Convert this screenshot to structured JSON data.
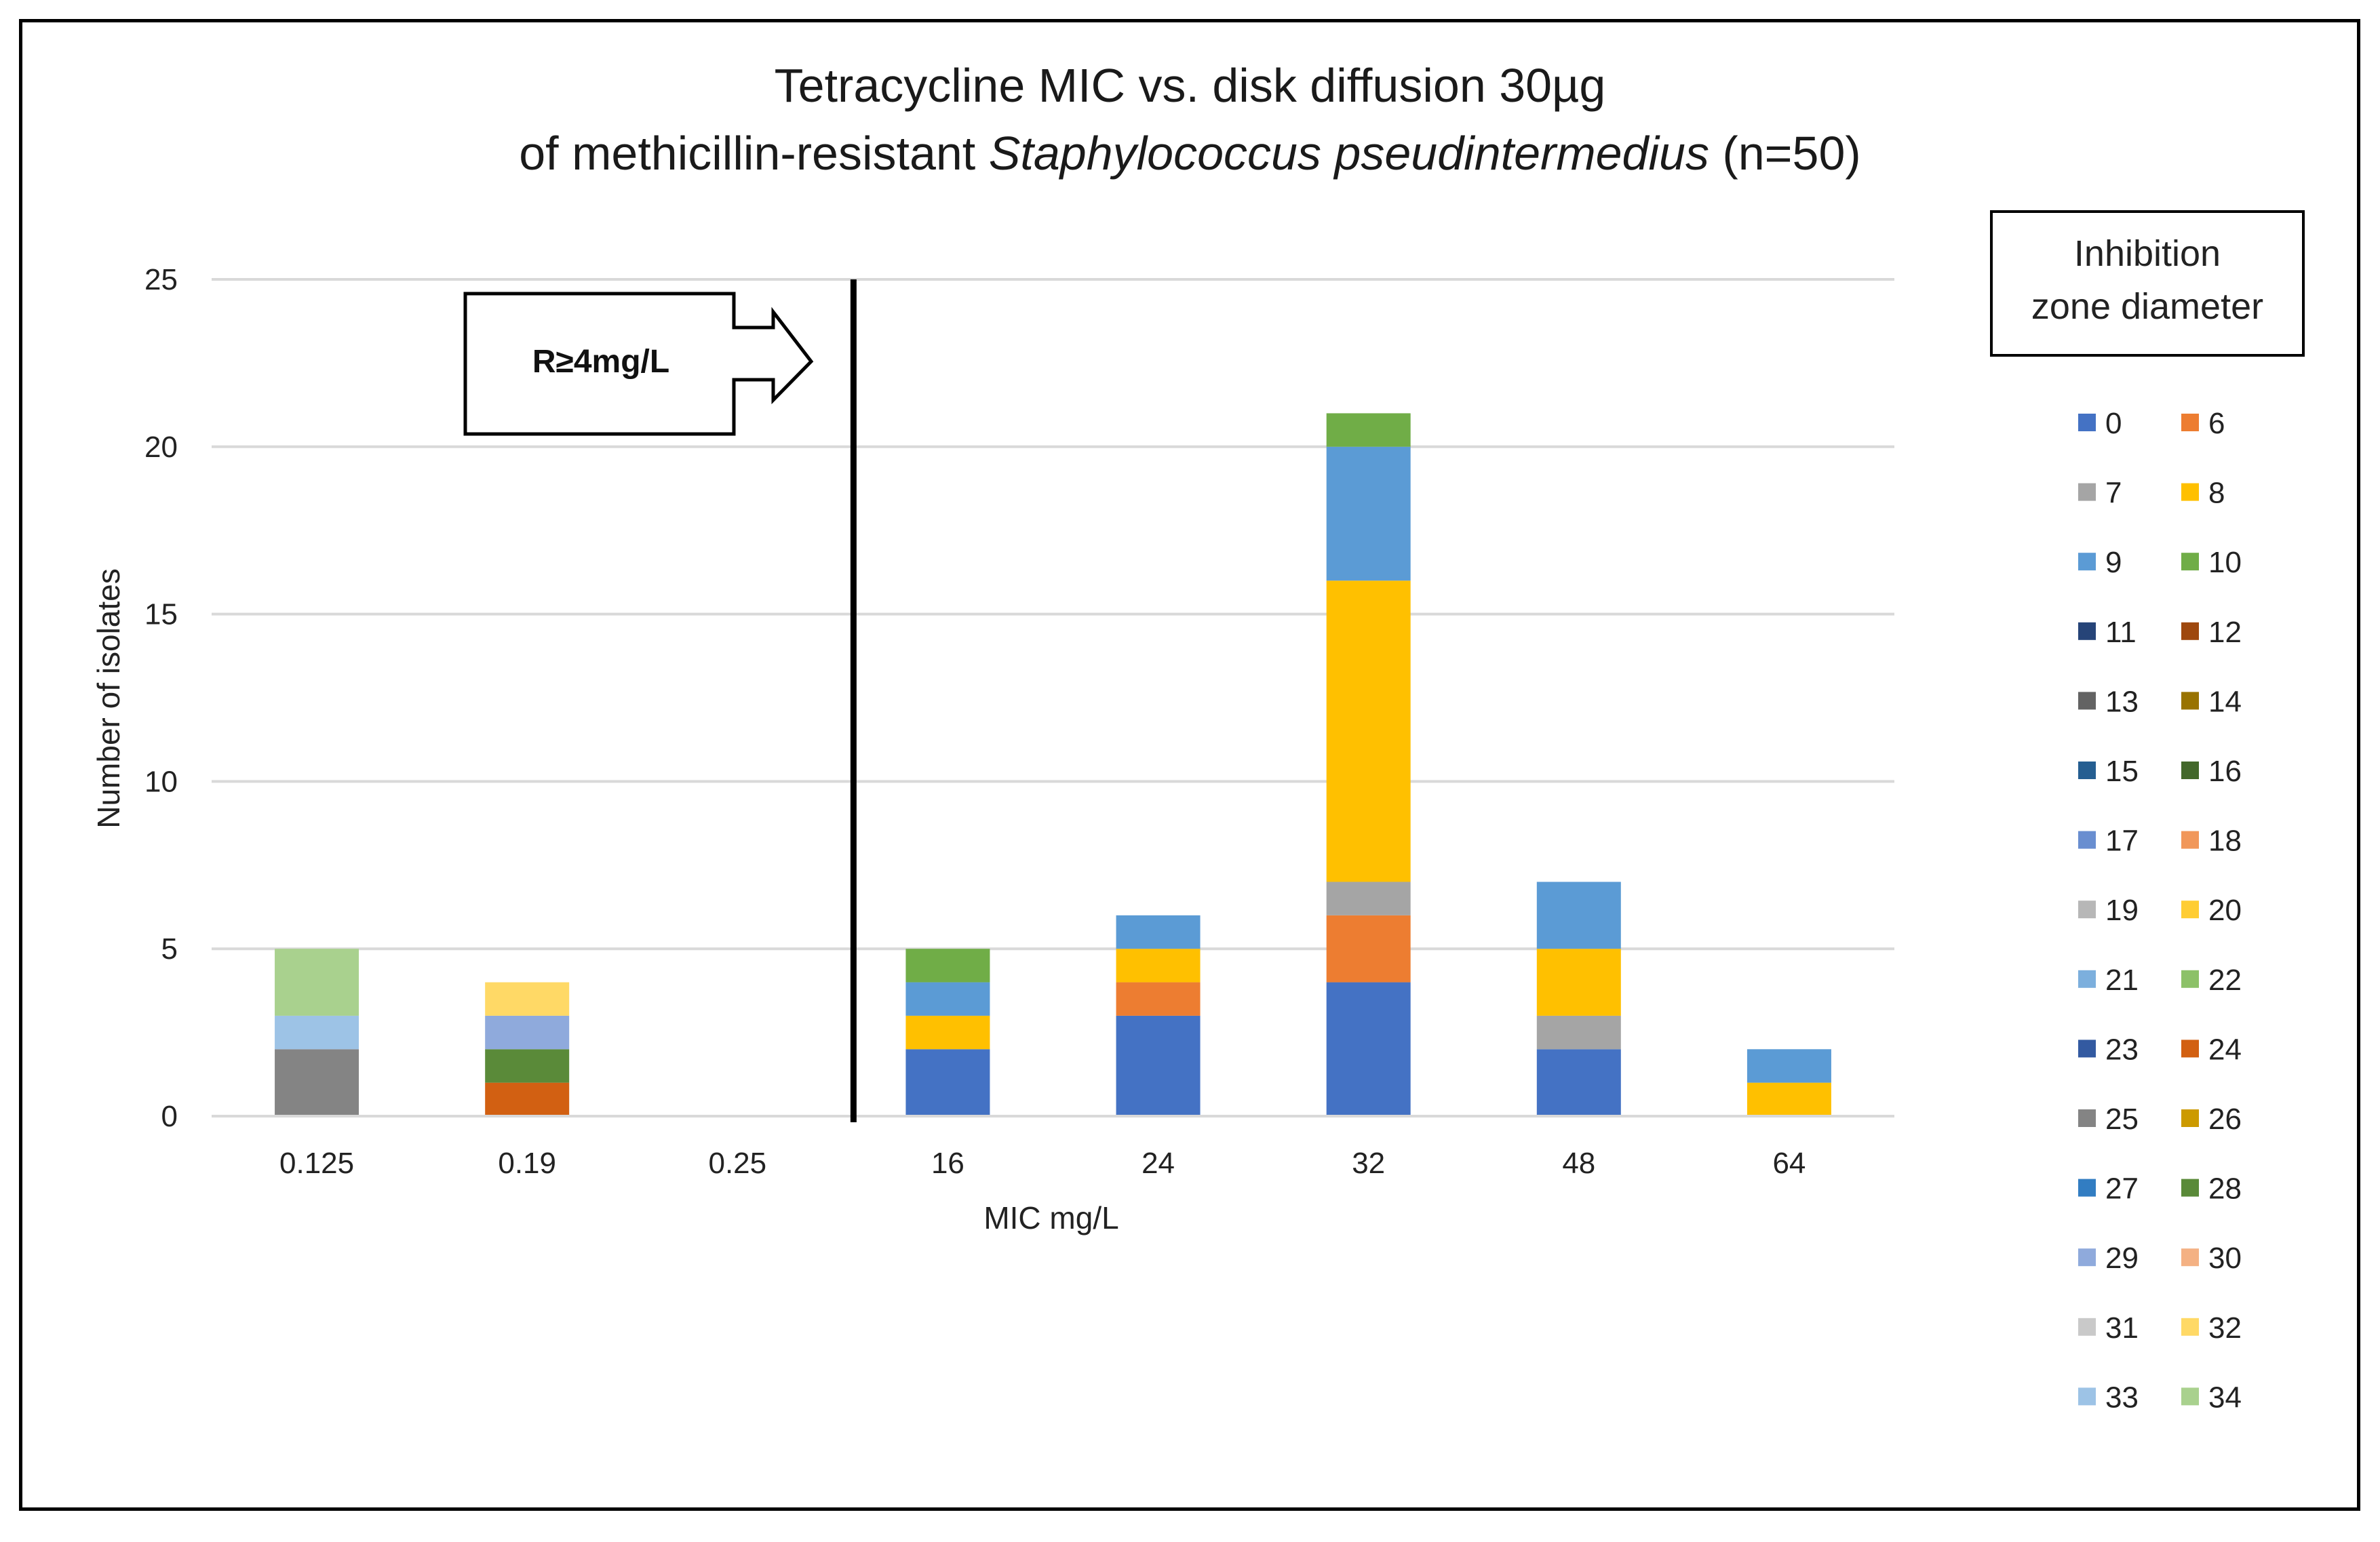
{
  "chart_data": {
    "type": "bar",
    "stacked": true,
    "title_line1": "Tetracycline MIC vs. disk diffusion 30µg",
    "title_line2_prefix": "of methicillin-resistant ",
    "title_line2_italic": "Staphylococcus pseudintermedius",
    "title_line2_suffix": " (n=50)",
    "xlabel": "MIC  mg/L",
    "ylabel": "Number of isolates",
    "ylim": [
      0,
      25
    ],
    "yticks": [
      0,
      5,
      10,
      15,
      20,
      25
    ],
    "grid": true,
    "categories": [
      "0.125",
      "0.19",
      "0.25",
      "16",
      "24",
      "32",
      "48",
      "64"
    ],
    "breakpoint": {
      "label": "R≥4mg/L",
      "between_categories": [
        "0.25",
        "16"
      ]
    },
    "legend": {
      "title": "Inhibition zone diameter",
      "placement": "right"
    },
    "series": [
      {
        "name": "0",
        "color": "#4472C4",
        "values": [
          0,
          0,
          0,
          2,
          3,
          4,
          2,
          0
        ]
      },
      {
        "name": "6",
        "color": "#ED7D31",
        "values": [
          0,
          0,
          0,
          0,
          1,
          2,
          0,
          0
        ]
      },
      {
        "name": "7",
        "color": "#A5A5A5",
        "values": [
          0,
          0,
          0,
          0,
          0,
          1,
          1,
          0
        ]
      },
      {
        "name": "8",
        "color": "#FFC000",
        "values": [
          0,
          0,
          0,
          1,
          1,
          9,
          2,
          1
        ]
      },
      {
        "name": "9",
        "color": "#5B9BD5",
        "values": [
          0,
          0,
          0,
          1,
          1,
          4,
          2,
          1
        ]
      },
      {
        "name": "10",
        "color": "#70AD47",
        "values": [
          0,
          0,
          0,
          1,
          0,
          1,
          0,
          0
        ]
      },
      {
        "name": "11",
        "color": "#264478",
        "values": [
          0,
          0,
          0,
          0,
          0,
          0,
          0,
          0
        ]
      },
      {
        "name": "12",
        "color": "#9E480E",
        "values": [
          0,
          0,
          0,
          0,
          0,
          0,
          0,
          0
        ]
      },
      {
        "name": "13",
        "color": "#636363",
        "values": [
          0,
          0,
          0,
          0,
          0,
          0,
          0,
          0
        ]
      },
      {
        "name": "14",
        "color": "#997300",
        "values": [
          0,
          0,
          0,
          0,
          0,
          0,
          0,
          0
        ]
      },
      {
        "name": "15",
        "color": "#255E91",
        "values": [
          0,
          0,
          0,
          0,
          0,
          0,
          0,
          0
        ]
      },
      {
        "name": "16",
        "color": "#43682B",
        "values": [
          0,
          0,
          0,
          0,
          0,
          0,
          0,
          0
        ]
      },
      {
        "name": "17",
        "color": "#698ED0",
        "values": [
          0,
          0,
          0,
          0,
          0,
          0,
          0,
          0
        ]
      },
      {
        "name": "18",
        "color": "#F1975A",
        "values": [
          0,
          0,
          0,
          0,
          0,
          0,
          0,
          0
        ]
      },
      {
        "name": "19",
        "color": "#B7B7B7",
        "values": [
          0,
          0,
          0,
          0,
          0,
          0,
          0,
          0
        ]
      },
      {
        "name": "20",
        "color": "#FFCD33",
        "values": [
          0,
          0,
          0,
          0,
          0,
          0,
          0,
          0
        ]
      },
      {
        "name": "21",
        "color": "#7CAFDD",
        "values": [
          0,
          0,
          0,
          0,
          0,
          0,
          0,
          0
        ]
      },
      {
        "name": "22",
        "color": "#8CC168",
        "values": [
          0,
          0,
          0,
          0,
          0,
          0,
          0,
          0
        ]
      },
      {
        "name": "23",
        "color": "#335AA1",
        "values": [
          0,
          0,
          0,
          0,
          0,
          0,
          0,
          0
        ]
      },
      {
        "name": "24",
        "color": "#D26012",
        "values": [
          0,
          1,
          0,
          0,
          0,
          0,
          0,
          0
        ]
      },
      {
        "name": "25",
        "color": "#848484",
        "values": [
          2,
          0,
          0,
          0,
          0,
          0,
          0,
          0
        ]
      },
      {
        "name": "26",
        "color": "#CC9A00",
        "values": [
          0,
          0,
          0,
          0,
          0,
          0,
          0,
          0
        ]
      },
      {
        "name": "27",
        "color": "#327DC2",
        "values": [
          0,
          0,
          0,
          0,
          0,
          0,
          0,
          0
        ]
      },
      {
        "name": "28",
        "color": "#5A8A39",
        "values": [
          0,
          1,
          0,
          0,
          0,
          0,
          0,
          0
        ]
      },
      {
        "name": "29",
        "color": "#8FAADC",
        "values": [
          0,
          1,
          0,
          0,
          0,
          0,
          0,
          0
        ]
      },
      {
        "name": "30",
        "color": "#F4B183",
        "values": [
          0,
          0,
          0,
          0,
          0,
          0,
          0,
          0
        ]
      },
      {
        "name": "31",
        "color": "#C9C9C9",
        "values": [
          0,
          0,
          0,
          0,
          0,
          0,
          0,
          0
        ]
      },
      {
        "name": "32",
        "color": "#FFD966",
        "values": [
          0,
          1,
          0,
          0,
          0,
          0,
          0,
          0
        ]
      },
      {
        "name": "33",
        "color": "#9DC3E6",
        "values": [
          1,
          0,
          0,
          0,
          0,
          0,
          0,
          0
        ]
      },
      {
        "name": "34",
        "color": "#A9D18E",
        "values": [
          2,
          0,
          0,
          0,
          0,
          0,
          0,
          0
        ]
      }
    ]
  }
}
